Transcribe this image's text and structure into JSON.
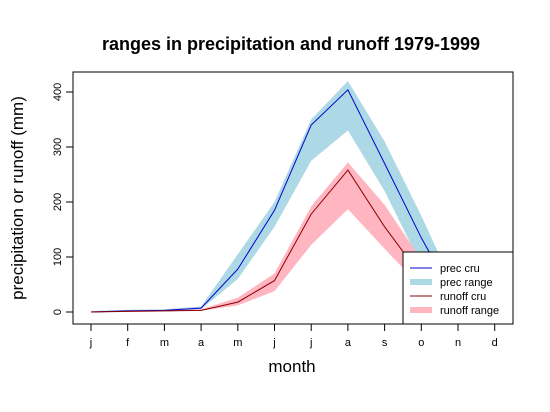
{
  "chart_data": {
    "type": "area",
    "title": "ranges in precipitation and runoff 1979-1999",
    "xlabel": "month",
    "ylabel": "precipitation or runoff (mm)",
    "categories": [
      "j",
      "f",
      "m",
      "a",
      "m",
      "j",
      "j",
      "a",
      "s",
      "o",
      "n",
      "d"
    ],
    "ylim": [
      -10,
      430
    ],
    "yticks": [
      0,
      100,
      200,
      300,
      400
    ],
    "grid": false,
    "legend_position": "bottom-right",
    "series": [
      {
        "name": "prec cru",
        "kind": "line",
        "color": "#0000cd",
        "values": [
          0,
          2,
          3,
          7,
          78,
          185,
          340,
          404,
          270,
          135,
          15,
          0
        ]
      },
      {
        "name": "prec range",
        "kind": "band",
        "color": "#add8e6",
        "lower": [
          0,
          1,
          2,
          5,
          60,
          155,
          275,
          330,
          220,
          85,
          5,
          0
        ],
        "upper": [
          2,
          4,
          5,
          10,
          105,
          200,
          350,
          420,
          310,
          175,
          30,
          2
        ]
      },
      {
        "name": "runoff cru",
        "kind": "line",
        "color": "#8b0000",
        "values": [
          0,
          1,
          2,
          3,
          18,
          57,
          178,
          258,
          155,
          65,
          8,
          0
        ]
      },
      {
        "name": "runoff range",
        "kind": "band",
        "color": "#ffb6c1",
        "lower": [
          0,
          0,
          1,
          2,
          12,
          38,
          122,
          187,
          115,
          45,
          4,
          0
        ],
        "upper": [
          1,
          2,
          3,
          5,
          26,
          70,
          192,
          272,
          195,
          95,
          15,
          1
        ]
      }
    ]
  }
}
